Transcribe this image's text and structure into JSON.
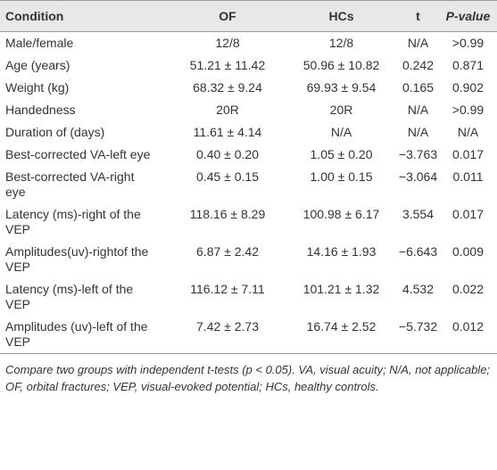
{
  "table": {
    "header": [
      "Condition",
      "OF",
      "HCs",
      "t",
      "P-value"
    ],
    "rows": [
      [
        "Male/female",
        "12/8",
        "12/8",
        "N/A",
        ">0.99"
      ],
      [
        "Age (years)",
        "51.21 ± 11.42",
        "50.96 ± 10.82",
        "0.242",
        "0.871"
      ],
      [
        "Weight (kg)",
        "68.32 ± 9.24",
        "69.93 ± 9.54",
        "0.165",
        "0.902"
      ],
      [
        "Handedness",
        "20R",
        "20R",
        "N/A",
        ">0.99"
      ],
      [
        "Duration of (days)",
        "11.61 ± 4.14",
        "N/A",
        "N/A",
        "N/A"
      ],
      [
        "Best-corrected VA-left eye",
        "0.40 ± 0.20",
        "1.05 ± 0.20",
        "−3.763",
        "0.017"
      ],
      [
        "Best-corrected VA-right eye",
        "0.45 ± 0.15",
        "1.00 ± 0.15",
        "−3.064",
        "0.011"
      ],
      [
        "Latency (ms)-right of the VEP",
        "118.16 ± 8.29",
        "100.98 ± 6.17",
        "3.554",
        "0.017"
      ],
      [
        "Amplitudes(uv)-rightof the VEP",
        "6.87 ± 2.42",
        "14.16 ± 1.93",
        "−6.643",
        "0.009"
      ],
      [
        "Latency (ms)-left of the VEP",
        "116.12 ± 7.11",
        "101.21 ± 1.32",
        "4.532",
        "0.022"
      ],
      [
        "Amplitudes (uv)-left of the VEP",
        "7.42 ± 2.73",
        "16.74 ± 2.52",
        "−5.732",
        "0.012"
      ]
    ]
  },
  "footnote": "Compare two groups with independent t-tests (p < 0.05). VA, visual acuity; N/A, not applicable; OF, orbital fractures; VEP, visual-evoked potential; HCs, healthy controls."
}
